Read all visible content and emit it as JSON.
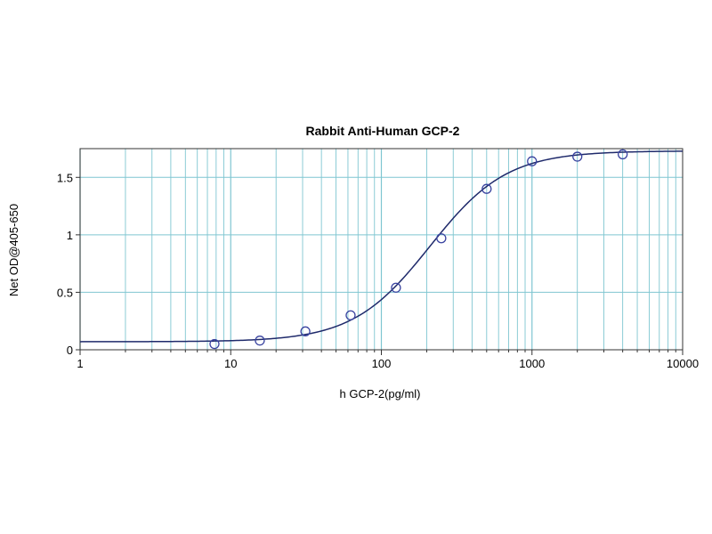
{
  "chart_data": {
    "type": "scatter",
    "title": "Rabbit Anti-Human GCP-2",
    "xlabel": "h GCP-2(pg/ml)",
    "ylabel": "Net OD@405-650",
    "xscale": "log",
    "xlim": [
      1,
      10000
    ],
    "ylim": [
      0,
      1.75
    ],
    "xticks": [
      1,
      10,
      100,
      1000,
      10000
    ],
    "xtick_labels": [
      "1",
      "10",
      "100",
      "1000",
      "10000"
    ],
    "yticks": [
      0,
      0.5,
      1,
      1.5
    ],
    "ytick_labels": [
      "0",
      "0.5",
      "1",
      "1.5"
    ],
    "grid": true,
    "series": [
      {
        "x": [
          7.8,
          15.6,
          31.3,
          62.5,
          125,
          250,
          500,
          1000,
          2000,
          4000
        ],
        "y": [
          0.05,
          0.08,
          0.16,
          0.3,
          0.54,
          0.97,
          1.4,
          1.64,
          1.68,
          1.7
        ]
      }
    ],
    "fit_curve": {
      "model": "4PL",
      "bottom": 0.07,
      "top": 1.73,
      "ec50": 210,
      "hill": 1.7
    },
    "colors": {
      "gridline": "#7fc6d1",
      "curve": "#1f2a6b",
      "marker": "#3a44a0",
      "plot_background": "#ffffff"
    }
  }
}
